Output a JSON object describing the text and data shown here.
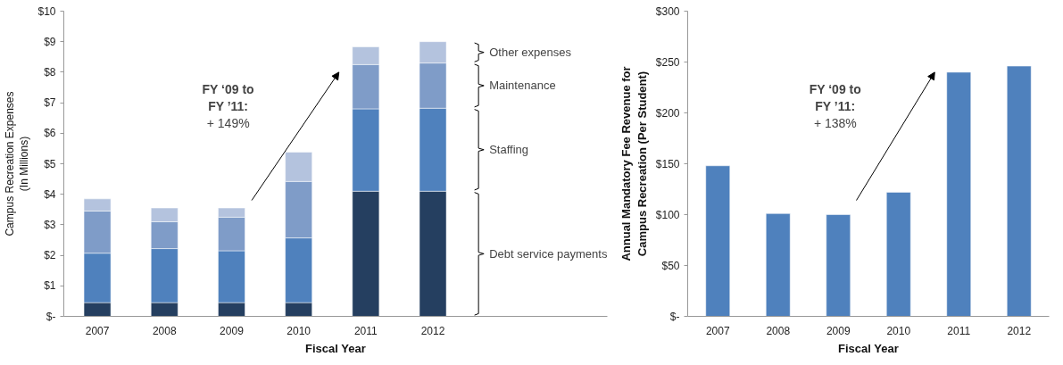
{
  "chart_data": [
    {
      "type": "bar",
      "stacked": true,
      "xlabel": "Fiscal Year",
      "ylabel": "Campus Recreation Expenses\n(In Millions)",
      "categories": [
        "2007",
        "2008",
        "2009",
        "2010",
        "2011",
        "2012"
      ],
      "series": [
        {
          "name": "Debt service payments",
          "color": "#253f60",
          "values": [
            0.45,
            0.45,
            0.45,
            0.45,
            4.1,
            4.1
          ]
        },
        {
          "name": "Staffing",
          "color": "#4f81bd",
          "values": [
            1.62,
            1.77,
            1.7,
            2.12,
            2.7,
            2.72
          ]
        },
        {
          "name": "Maintenance",
          "color": "#7f9cc8",
          "values": [
            1.38,
            0.88,
            1.1,
            1.85,
            1.45,
            1.48
          ]
        },
        {
          "name": "Other expenses",
          "color": "#b4c3de",
          "values": [
            0.4,
            0.45,
            0.3,
            0.96,
            0.58,
            0.7
          ]
        }
      ],
      "ylim": [
        0,
        10
      ],
      "yticks": [
        {
          "value": 0,
          "label": "$-"
        },
        {
          "value": 1,
          "label": "$1"
        },
        {
          "value": 2,
          "label": "$2"
        },
        {
          "value": 3,
          "label": "$3"
        },
        {
          "value": 4,
          "label": "$4"
        },
        {
          "value": 5,
          "label": "$5"
        },
        {
          "value": 6,
          "label": "$6"
        },
        {
          "value": 7,
          "label": "$7"
        },
        {
          "value": 8,
          "label": "$8"
        },
        {
          "value": 9,
          "label": "$9"
        },
        {
          "value": 10,
          "label": "$10"
        }
      ],
      "grid": false,
      "annotations": [
        "FY ‘09 to\nFY ’11:\n+ 149%"
      ]
    },
    {
      "type": "bar",
      "xlabel": "Fiscal Year",
      "ylabel": "Annual Mandatory Fee Revenue for\nCampus Recreation (Per Student)",
      "categories": [
        "2007",
        "2008",
        "2009",
        "2010",
        "2011",
        "2012"
      ],
      "series": [
        {
          "color": "#4f81bd",
          "values": [
            148,
            101,
            100,
            122,
            240,
            246
          ]
        }
      ],
      "ylim": [
        0,
        300
      ],
      "yticks": [
        {
          "value": 0,
          "label": "$-"
        },
        {
          "value": 50,
          "label": "$50"
        },
        {
          "value": 100,
          "label": "$100"
        },
        {
          "value": 150,
          "label": "$150"
        },
        {
          "value": 200,
          "label": "$200"
        },
        {
          "value": 250,
          "label": "$250"
        },
        {
          "value": 300,
          "label": "$300"
        }
      ],
      "grid": false,
      "annotations": [
        "FY ‘09 to\nFY ’11:\n+ 138%"
      ]
    }
  ]
}
